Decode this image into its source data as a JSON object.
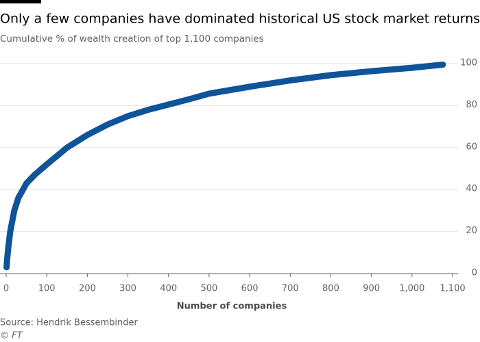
{
  "chart_data": {
    "type": "line",
    "title": "Only a few companies have dominated historical US stock market returns",
    "subtitle": "Cumulative % of wealth creation of top 1,100 companies",
    "x_label": "Number of companies",
    "source": "Source: Hendrik Bessembinder",
    "credit": "© FT",
    "series": [
      {
        "color": "#0f5499",
        "x": [
          1,
          2,
          3,
          5,
          10,
          20,
          30,
          50,
          70,
          100,
          150,
          200,
          250,
          300,
          350,
          400,
          450,
          500,
          600,
          700,
          800,
          900,
          1000,
          1076
        ],
        "values": [
          3,
          6,
          8,
          12,
          20,
          30,
          36,
          43,
          47,
          52,
          60,
          66,
          71,
          75,
          78,
          80.5,
          83,
          85.7,
          89,
          92,
          94.5,
          96.4,
          98,
          99.5
        ]
      }
    ],
    "xlim": [
      0,
      1100
    ],
    "xticks": [
      0,
      100,
      200,
      300,
      400,
      500,
      600,
      700,
      800,
      900,
      {
        "value": 1000,
        "label": "1,000"
      },
      {
        "value": 1100,
        "label": "1,100"
      }
    ],
    "ylim": [
      0,
      100
    ],
    "yticks": [
      0,
      20,
      40,
      60,
      80,
      100
    ],
    "grid": true
  }
}
